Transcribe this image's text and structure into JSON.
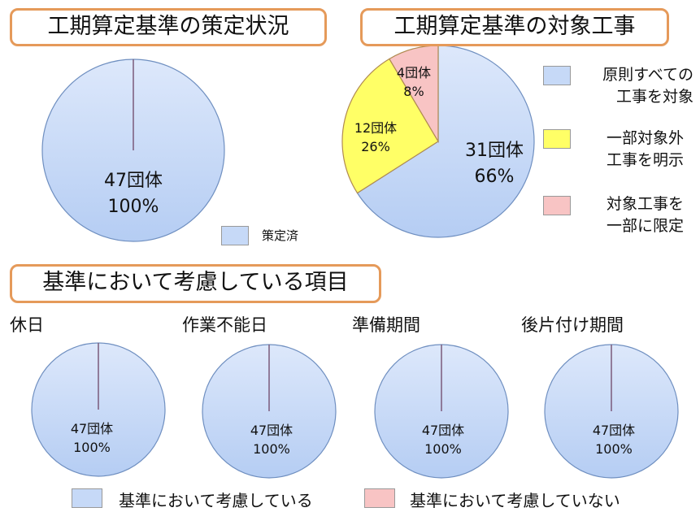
{
  "titles": {
    "status": "工期算定基準の策定状況",
    "target": "工期算定基準の対象工事",
    "items": "基準において考慮している項目"
  },
  "colors": {
    "blue": "#c6d9f7",
    "yellow": "#ffff66",
    "pink": "#f8c4c4",
    "border": "#e59a5a"
  },
  "chart_data": [
    {
      "type": "pie",
      "title": "工期算定基準の策定状況",
      "slices": [
        {
          "label": "策定済",
          "count": "47団体",
          "value": 47,
          "pct": "100%",
          "color": "#c6d9f7"
        }
      ],
      "legend": [
        "策定済"
      ]
    },
    {
      "type": "pie",
      "title": "工期算定基準の対象工事",
      "slices": [
        {
          "label": "原則すべての工事を対象",
          "count": "31団体",
          "value": 31,
          "pct": "66%",
          "color": "#c6d9f7"
        },
        {
          "label": "一部対象外工事を明示",
          "count": "12団体",
          "value": 12,
          "pct": "26%",
          "color": "#ffff66"
        },
        {
          "label": "対象工事を一部に限定",
          "count": "4団体",
          "value": 4,
          "pct": "8%",
          "color": "#f8c4c4"
        }
      ],
      "legend": [
        [
          "原則すべての",
          "工事を対象"
        ],
        [
          "一部対象外",
          "工事を明示"
        ],
        [
          "対象工事を",
          "一部に限定"
        ]
      ]
    },
    {
      "type": "pie",
      "title": "休日",
      "slices": [
        {
          "label": "基準において考慮している",
          "count": "47団体",
          "value": 47,
          "pct": "100%"
        }
      ]
    },
    {
      "type": "pie",
      "title": "作業不能日",
      "slices": [
        {
          "label": "基準において考慮している",
          "count": "47団体",
          "value": 47,
          "pct": "100%"
        }
      ]
    },
    {
      "type": "pie",
      "title": "準備期間",
      "slices": [
        {
          "label": "基準において考慮している",
          "count": "47団体",
          "value": 47,
          "pct": "100%"
        }
      ]
    },
    {
      "type": "pie",
      "title": "後片付け期間",
      "slices": [
        {
          "label": "基準において考慮している",
          "count": "47団体",
          "value": 47,
          "pct": "100%"
        }
      ]
    }
  ],
  "bottom_legend": [
    "基準において考慮している",
    "基準において考慮していない"
  ]
}
